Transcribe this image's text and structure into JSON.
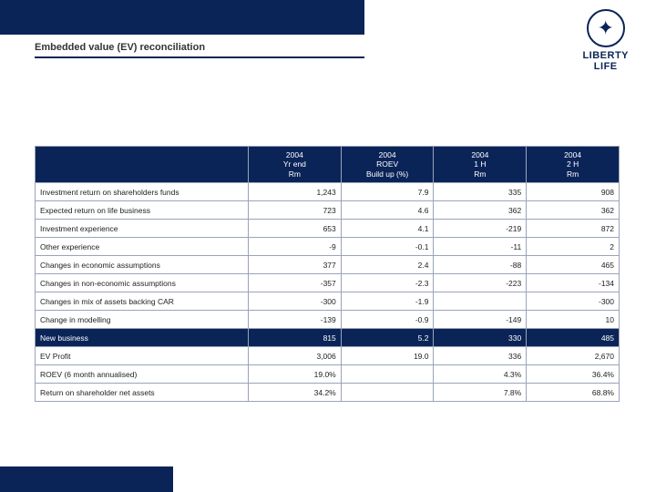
{
  "colors": {
    "brand_navy": "#0a2458",
    "border": "#9aa4b8",
    "white": "#ffffff",
    "text": "#222222"
  },
  "title": "Embedded value (EV) reconciliation",
  "logo": {
    "line1": "LIBERTY",
    "line2": "LIFE"
  },
  "table": {
    "headers": [
      "",
      "2004\nYr end\nRm",
      "2004\nROEV\nBuild up (%)",
      "2004\n1 H\nRm",
      "2004\n2 H\nRm"
    ],
    "rows": [
      {
        "label": "Investment return on shareholders funds",
        "cells": [
          "1,243",
          "7.9",
          "335",
          "908"
        ],
        "highlight": false
      },
      {
        "label": "Expected return on life business",
        "cells": [
          "723",
          "4.6",
          "362",
          "362"
        ],
        "highlight": false
      },
      {
        "label": "Investment experience",
        "cells": [
          "653",
          "4.1",
          "-219",
          "872"
        ],
        "highlight": false
      },
      {
        "label": "Other experience",
        "cells": [
          "-9",
          "-0.1",
          "-11",
          "2"
        ],
        "highlight": false
      },
      {
        "label": "Changes in economic assumptions",
        "cells": [
          "377",
          "2.4",
          "-88",
          "465"
        ],
        "highlight": false
      },
      {
        "label": "Changes in non-economic assumptions",
        "cells": [
          "-357",
          "-2.3",
          "-223",
          "-134"
        ],
        "highlight": false
      },
      {
        "label": "Changes in mix of assets backing CAR",
        "cells": [
          "-300",
          "-1.9",
          "",
          "-300"
        ],
        "highlight": false
      },
      {
        "label": "Change in modelling",
        "cells": [
          "-139",
          "-0.9",
          "-149",
          "10"
        ],
        "highlight": false
      },
      {
        "label": "New business",
        "cells": [
          "815",
          "5.2",
          "330",
          "485"
        ],
        "highlight": true
      },
      {
        "label": "EV Profit",
        "cells": [
          "3,006",
          "19.0",
          "336",
          "2,670"
        ],
        "highlight": false
      },
      {
        "label": "ROEV (6 month annualised)",
        "cells": [
          "19.0%",
          "",
          "4.3%",
          "36.4%"
        ],
        "highlight": false
      },
      {
        "label": "Return on shareholder net assets",
        "cells": [
          "34.2%",
          "",
          "7.8%",
          "68.8%"
        ],
        "highlight": false
      }
    ]
  }
}
